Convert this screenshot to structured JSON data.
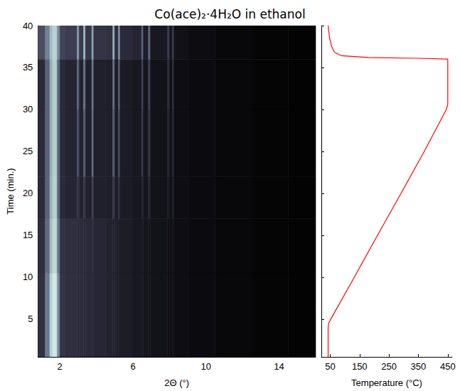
{
  "chart_data": [
    {
      "type": "heatmap",
      "title": "Co(ace)₂·4H₂O in ethanol",
      "xlabel": "2Θ (°)",
      "ylabel": "Time (min.)",
      "xlim": [
        0.8,
        16
      ],
      "xticks": [
        2,
        6,
        10,
        14
      ],
      "ylim": [
        0.5,
        40
      ],
      "yticks": [
        5,
        10,
        15,
        20,
        25,
        30,
        35,
        40
      ],
      "x_edges": [
        0.8,
        1.2,
        1.45,
        1.6,
        1.85,
        2.0,
        2.3,
        2.95,
        3.05,
        3.3,
        3.4,
        3.75,
        3.85,
        4.5,
        4.9,
        5.0,
        5.2,
        5.3,
        6.0,
        6.47,
        6.57,
        6.85,
        6.95,
        7.9,
        8.0,
        8.15,
        8.25,
        9.0,
        10.5,
        12.5,
        14.5,
        16.0
      ],
      "y_edges": [
        0.5,
        10.5,
        17,
        22,
        30,
        36,
        40
      ],
      "z": [
        [
          32,
          60,
          85,
          95,
          65,
          34,
          31,
          29,
          29,
          28,
          27,
          26,
          25,
          23,
          22,
          22,
          21,
          19,
          16,
          15,
          14,
          14,
          12,
          10,
          10,
          10,
          9,
          7,
          5,
          3,
          2
        ],
        [
          30,
          55,
          78,
          88,
          60,
          33,
          31,
          29,
          29,
          28,
          27,
          27,
          25,
          23,
          22,
          22,
          21,
          19,
          16,
          15,
          14,
          14,
          12,
          10,
          10,
          10,
          9,
          7,
          5,
          3,
          2
        ],
        [
          28,
          52,
          75,
          85,
          55,
          28,
          24,
          36,
          23,
          38,
          22,
          40,
          21,
          20,
          38,
          19,
          32,
          18,
          15,
          24,
          14,
          26,
          12,
          18,
          10,
          17,
          9,
          7,
          5,
          3,
          2
        ],
        [
          28,
          52,
          74,
          84,
          55,
          28,
          24,
          48,
          23,
          52,
          22,
          55,
          21,
          20,
          52,
          19,
          44,
          18,
          15,
          34,
          14,
          36,
          12,
          26,
          10,
          24,
          9,
          7,
          5,
          3,
          2
        ],
        [
          27,
          52,
          74,
          84,
          55,
          28,
          24,
          55,
          23,
          60,
          22,
          60,
          21,
          20,
          58,
          19,
          50,
          18,
          15,
          40,
          14,
          42,
          12,
          30,
          10,
          28,
          9,
          7,
          5,
          3,
          2
        ],
        [
          45,
          62,
          78,
          86,
          65,
          42,
          40,
          70,
          38,
          78,
          36,
          72,
          34,
          32,
          75,
          30,
          66,
          28,
          24,
          52,
          20,
          55,
          16,
          40,
          13,
          36,
          11,
          8,
          5,
          3,
          2
        ]
      ],
      "zlim": [
        0,
        100
      ]
    },
    {
      "type": "line",
      "xlabel": "Temperature (°C)",
      "xlim": [
        20,
        465
      ],
      "xticks": [
        50,
        150,
        250,
        350,
        450
      ],
      "ylim": [
        0.5,
        40
      ],
      "yticks": [
        5,
        10,
        15,
        20,
        25,
        30,
        35,
        40
      ],
      "tick_labels": "x",
      "color": "#ff0000",
      "x": [
        43,
        43,
        45,
        52,
        132,
        211,
        291,
        370,
        445,
        450,
        450,
        350,
        180,
        90,
        65,
        55,
        48,
        43
      ],
      "y": [
        0.5,
        4,
        4.5,
        5,
        10,
        15,
        20,
        25,
        30,
        30.6,
        36,
        36.1,
        36.2,
        36.4,
        36.8,
        37.5,
        38.5,
        40
      ]
    }
  ]
}
